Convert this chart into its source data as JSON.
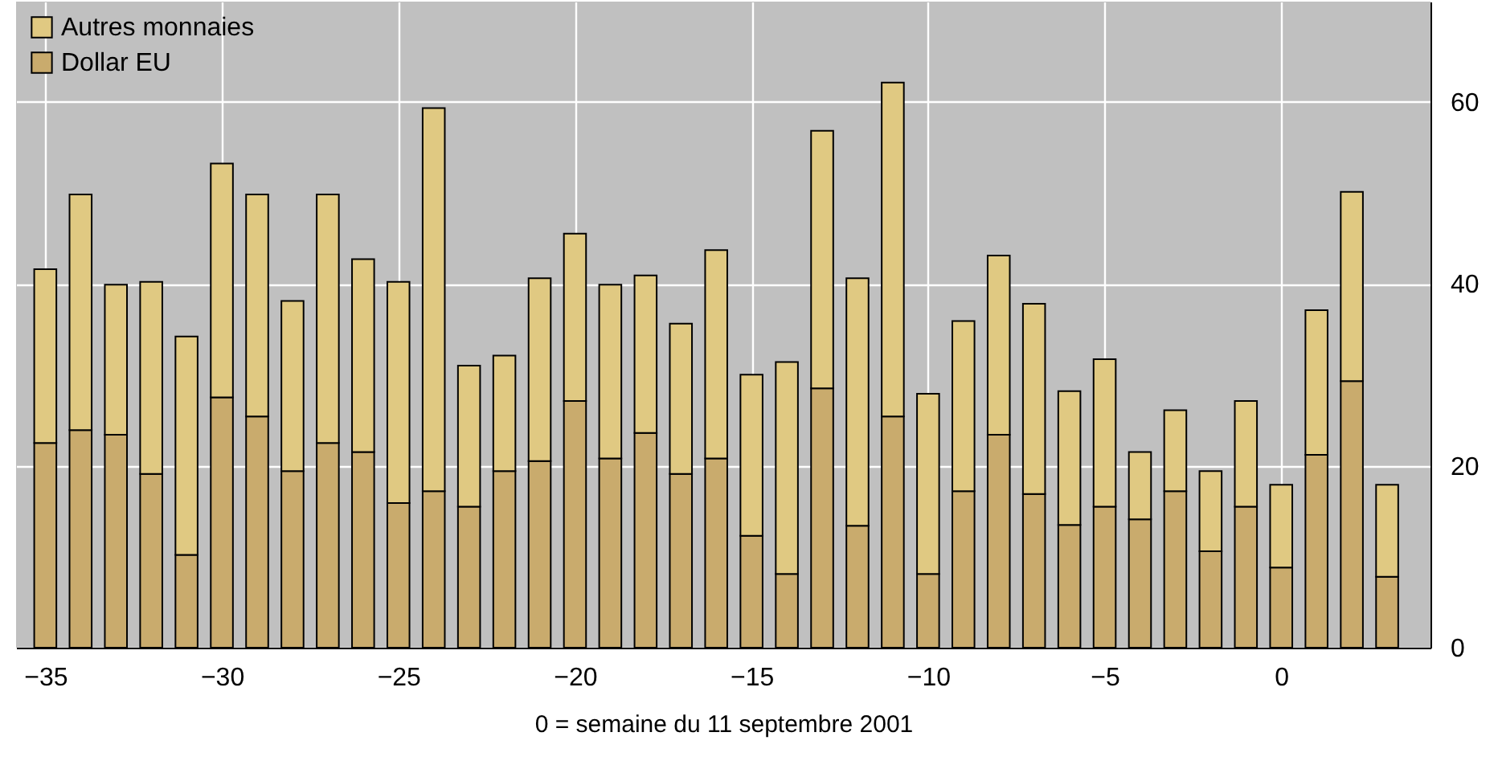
{
  "chart_data": {
    "type": "bar",
    "stacked": true,
    "xlabel": "0 = semaine du 11 septembre 2001",
    "x": [
      -35,
      -34,
      -33,
      -32,
      -31,
      -30,
      -29,
      -28,
      -27,
      -26,
      -25,
      -24,
      -23,
      -22,
      -21,
      -20,
      -19,
      -18,
      -17,
      -16,
      -15,
      -14,
      -13,
      -12,
      -11,
      -10,
      -9,
      -8,
      -7,
      -6,
      -5,
      -4,
      -3,
      -2,
      -1,
      0,
      1,
      2,
      3
    ],
    "series": [
      {
        "name": "Dollar EU",
        "color": "#c9ab6d",
        "values": [
          22.5,
          23.9,
          23.4,
          19.1,
          10.2,
          27.5,
          25.4,
          19.4,
          22.5,
          21.5,
          15.9,
          17.2,
          15.5,
          19.4,
          20.5,
          27.1,
          20.8,
          23.6,
          19.1,
          20.8,
          12.3,
          8.1,
          28.5,
          13.4,
          25.4,
          8.1,
          17.2,
          23.4,
          16.9,
          13.5,
          15.5,
          14.1,
          17.2,
          10.6,
          15.5,
          8.8,
          21.2,
          29.3,
          7.8
        ]
      },
      {
        "name": "Autres monnaies",
        "color": "#e0c982",
        "values": [
          19.1,
          25.9,
          16.5,
          21.1,
          24.0,
          25.7,
          24.4,
          18.7,
          27.3,
          21.2,
          24.3,
          42.1,
          15.5,
          12.7,
          20.1,
          18.4,
          19.1,
          17.3,
          16.5,
          22.9,
          17.7,
          23.3,
          28.3,
          27.2,
          36.7,
          19.8,
          18.7,
          19.7,
          20.9,
          14.7,
          16.2,
          7.4,
          8.9,
          8.8,
          11.6,
          9.1,
          15.9,
          20.8,
          10.1
        ]
      }
    ],
    "xlim": [
      -35.6,
      4
    ],
    "xticks": [
      -35,
      -30,
      -25,
      -20,
      -15,
      -10,
      -5,
      0
    ],
    "ylim": [
      0,
      71
    ],
    "yticks": [
      0,
      20,
      40,
      60
    ],
    "grid": true,
    "legend": "top left"
  }
}
